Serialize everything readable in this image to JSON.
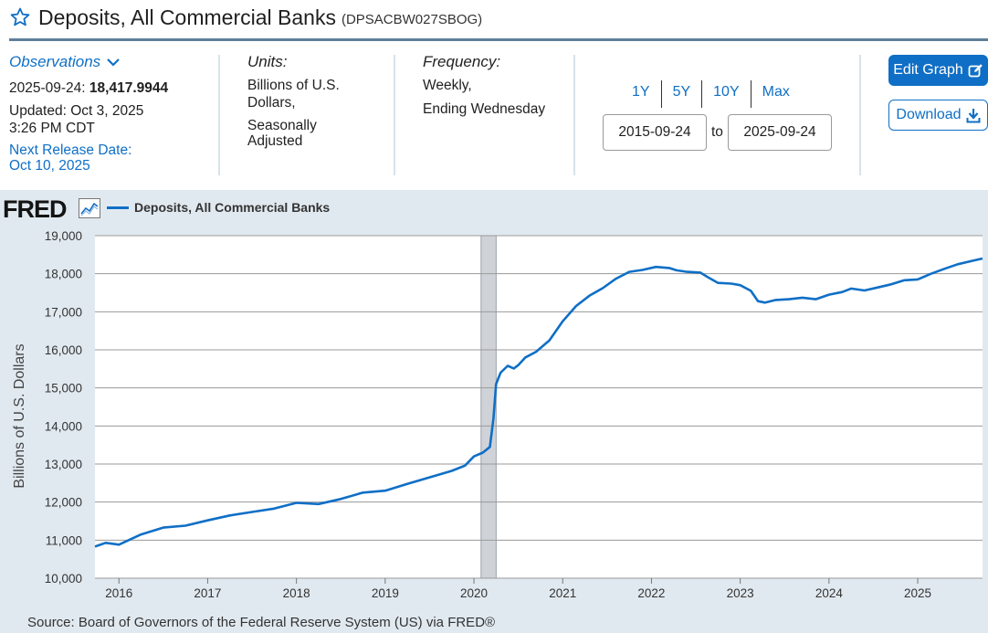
{
  "header": {
    "title": "Deposits, All Commercial Banks",
    "series_id": "(DPSACBW027SBOG)"
  },
  "observations": {
    "label": "Observations",
    "date": "2025-09-24:",
    "value": "18,417.9944",
    "updated_line1": "Updated: Oct 3, 2025",
    "updated_line2": "3:26 PM CDT",
    "next_release_line1": "Next Release Date:",
    "next_release_line2": "Oct 10, 2025"
  },
  "units": {
    "label": "Units:",
    "lines": [
      "Billions of U.S.",
      "Dollars,",
      "Seasonally",
      "Adjusted"
    ]
  },
  "frequency": {
    "label": "Frequency:",
    "lines": [
      "Weekly,",
      "Ending Wednesday"
    ]
  },
  "ranges": [
    "1Y",
    "5Y",
    "10Y",
    "Max"
  ],
  "date_range": {
    "start": "2015-09-24",
    "to": "to",
    "end": "2025-09-24"
  },
  "buttons": {
    "edit": "Edit Graph",
    "download": "Download"
  },
  "logo_text": "FRED",
  "source": "Source: Board of Governors of the Federal Reserve System (US) via FRED®",
  "colors": {
    "accent": "#0f6fc6",
    "panel": "#e1e9f0",
    "recession": "#cfd3d8"
  },
  "chart_data": {
    "type": "line",
    "legend": "Deposits, All Commercial Banks",
    "ylabel": "Billions of U.S. Dollars",
    "ylim": [
      10000,
      19000
    ],
    "xlim": [
      2015.73,
      2025.73
    ],
    "yticks": [
      10000,
      11000,
      12000,
      13000,
      14000,
      15000,
      16000,
      17000,
      18000,
      19000
    ],
    "ytick_labels": [
      "10,000",
      "11,000",
      "12,000",
      "13,000",
      "14,000",
      "15,000",
      "16,000",
      "17,000",
      "18,000",
      "19,000"
    ],
    "xticks": [
      2016,
      2017,
      2018,
      2019,
      2020,
      2021,
      2022,
      2023,
      2024,
      2025
    ],
    "xtick_labels": [
      "2016",
      "2017",
      "2018",
      "2019",
      "2020",
      "2021",
      "2022",
      "2023",
      "2024",
      "2025"
    ],
    "grid": true,
    "recession": [
      2020.08,
      2020.25
    ],
    "series": [
      {
        "name": "Deposits, All Commercial Banks",
        "x": [
          2015.73,
          2015.85,
          2016.0,
          2016.25,
          2016.5,
          2016.75,
          2017.0,
          2017.25,
          2017.5,
          2017.75,
          2018.0,
          2018.25,
          2018.5,
          2018.75,
          2019.0,
          2019.25,
          2019.5,
          2019.75,
          2019.9,
          2020.0,
          2020.1,
          2020.18,
          2020.22,
          2020.25,
          2020.3,
          2020.38,
          2020.45,
          2020.5,
          2020.58,
          2020.7,
          2020.85,
          2021.0,
          2021.15,
          2021.3,
          2021.45,
          2021.6,
          2021.75,
          2021.9,
          2022.05,
          2022.2,
          2022.28,
          2022.4,
          2022.55,
          2022.65,
          2022.75,
          2022.9,
          2023.0,
          2023.12,
          2023.2,
          2023.28,
          2023.4,
          2023.55,
          2023.7,
          2023.85,
          2024.0,
          2024.15,
          2024.25,
          2024.4,
          2024.55,
          2024.7,
          2024.85,
          2025.0,
          2025.15,
          2025.3,
          2025.45,
          2025.6,
          2025.73
        ],
        "values": [
          10830,
          10930,
          10880,
          11150,
          11330,
          11380,
          11520,
          11650,
          11740,
          11830,
          11980,
          11950,
          12080,
          12250,
          12300,
          12480,
          12650,
          12820,
          12960,
          13200,
          13300,
          13450,
          14200,
          15100,
          15400,
          15580,
          15510,
          15600,
          15800,
          15950,
          16250,
          16750,
          17150,
          17420,
          17620,
          17870,
          18050,
          18100,
          18180,
          18150,
          18090,
          18050,
          18030,
          17890,
          17760,
          17740,
          17700,
          17550,
          17280,
          17240,
          17310,
          17330,
          17370,
          17330,
          17450,
          17520,
          17610,
          17560,
          17640,
          17720,
          17830,
          17850,
          18000,
          18130,
          18250,
          18330,
          18400
        ]
      }
    ]
  }
}
